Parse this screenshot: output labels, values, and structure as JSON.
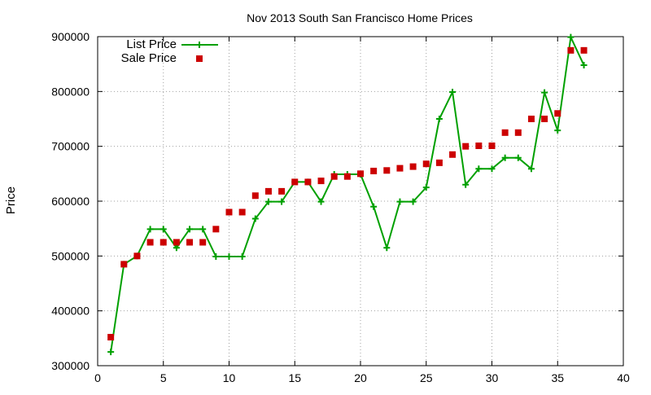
{
  "chart_data": {
    "type": "line",
    "title": "Nov 2013 South San Francisco Home Prices",
    "xlabel": "",
    "ylabel": "Price",
    "xlim": [
      0,
      40
    ],
    "ylim": [
      300000,
      900000
    ],
    "x_ticks": [
      0,
      5,
      10,
      15,
      20,
      25,
      30,
      35,
      40
    ],
    "y_ticks": [
      300000,
      400000,
      500000,
      600000,
      700000,
      800000,
      900000
    ],
    "grid": true,
    "legend_position": "top-left",
    "series": [
      {
        "name": "List Price",
        "style": "line with plus markers",
        "color": "#00a000",
        "points": [
          [
            1,
            325000
          ],
          [
            2,
            485000
          ],
          [
            3,
            500000
          ],
          [
            4,
            549000
          ],
          [
            5,
            549000
          ],
          [
            6,
            515000
          ],
          [
            7,
            549000
          ],
          [
            8,
            549000
          ],
          [
            9,
            499000
          ],
          [
            10,
            499000
          ],
          [
            11,
            499000
          ],
          [
            12,
            568000
          ],
          [
            13,
            599000
          ],
          [
            14,
            599000
          ],
          [
            15,
            635000
          ],
          [
            16,
            635000
          ],
          [
            17,
            599000
          ],
          [
            18,
            649000
          ],
          [
            19,
            649000
          ],
          [
            20,
            649000
          ],
          [
            21,
            590000
          ],
          [
            22,
            515000
          ],
          [
            23,
            599000
          ],
          [
            24,
            599000
          ],
          [
            25,
            625000
          ],
          [
            26,
            750000
          ],
          [
            27,
            799000
          ],
          [
            28,
            630000
          ],
          [
            29,
            659000
          ],
          [
            30,
            659000
          ],
          [
            31,
            679000
          ],
          [
            32,
            679000
          ],
          [
            33,
            659000
          ],
          [
            34,
            798000
          ],
          [
            35,
            729000
          ],
          [
            36,
            899000
          ],
          [
            37,
            848000
          ]
        ]
      },
      {
        "name": "Sale Price",
        "style": "square markers",
        "color": "#cc0000",
        "points": [
          [
            1,
            352000
          ],
          [
            2,
            485000
          ],
          [
            3,
            500000
          ],
          [
            4,
            525000
          ],
          [
            5,
            525000
          ],
          [
            6,
            525000
          ],
          [
            7,
            525000
          ],
          [
            8,
            525000
          ],
          [
            9,
            549000
          ],
          [
            10,
            580000
          ],
          [
            11,
            580000
          ],
          [
            12,
            610000
          ],
          [
            13,
            618000
          ],
          [
            14,
            618000
          ],
          [
            15,
            635000
          ],
          [
            16,
            635000
          ],
          [
            17,
            637000
          ],
          [
            18,
            645000
          ],
          [
            19,
            645000
          ],
          [
            20,
            650000
          ],
          [
            21,
            655000
          ],
          [
            22,
            656000
          ],
          [
            23,
            660000
          ],
          [
            24,
            663000
          ],
          [
            25,
            668000
          ],
          [
            26,
            670000
          ],
          [
            27,
            685000
          ],
          [
            28,
            700000
          ],
          [
            29,
            701000
          ],
          [
            30,
            701000
          ],
          [
            31,
            725000
          ],
          [
            32,
            725000
          ],
          [
            33,
            750000
          ],
          [
            34,
            750000
          ],
          [
            35,
            760000
          ],
          [
            36,
            875000
          ],
          [
            37,
            875000
          ]
        ]
      }
    ]
  }
}
